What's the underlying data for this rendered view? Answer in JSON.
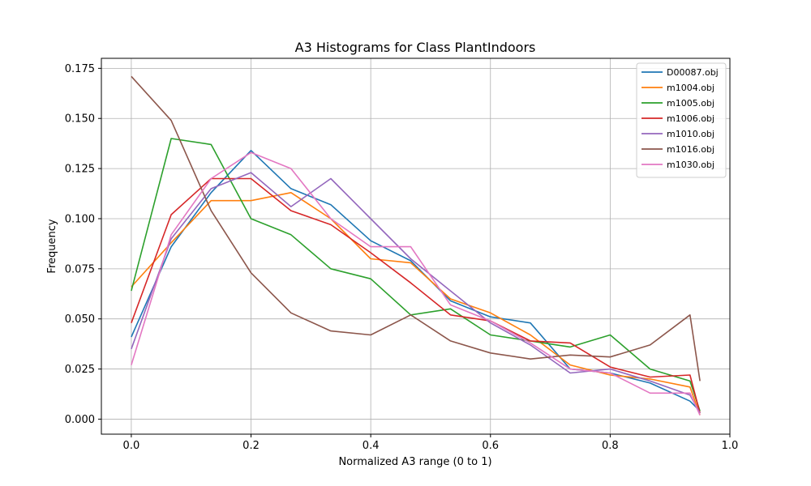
{
  "chart_data": {
    "type": "line",
    "title": "A3 Histograms for Class PlantIndoors",
    "xlabel": "Normalized A3 range (0 to 1)",
    "ylabel": "Frequency",
    "xlim": [
      -0.05,
      1.0
    ],
    "ylim": [
      -0.0075,
      0.18
    ],
    "xticks": [
      0.0,
      0.2,
      0.4,
      0.6,
      0.8,
      1.0
    ],
    "xtick_labels": [
      "0.0",
      "0.2",
      "0.4",
      "0.6",
      "0.8",
      "1.0"
    ],
    "yticks": [
      0.0,
      0.025,
      0.05,
      0.075,
      0.1,
      0.125,
      0.15,
      0.175
    ],
    "ytick_labels": [
      "0.000",
      "0.025",
      "0.050",
      "0.075",
      "0.100",
      "0.125",
      "0.150",
      "0.175"
    ],
    "grid": true,
    "legend_position": "top-right",
    "x": [
      0.0,
      0.0667,
      0.1333,
      0.2,
      0.2667,
      0.3333,
      0.4,
      0.4667,
      0.5333,
      0.6,
      0.6667,
      0.7333,
      0.8,
      0.8667,
      0.9333,
      0.95
    ],
    "series": [
      {
        "name": "D00087.obj",
        "color": "#1f77b4",
        "values": [
          0.041,
          0.086,
          0.113,
          0.134,
          0.115,
          0.107,
          0.089,
          0.079,
          0.059,
          0.051,
          0.048,
          0.025,
          0.023,
          0.018,
          0.009,
          0.004
        ]
      },
      {
        "name": "m1004.obj",
        "color": "#ff7f0e",
        "values": [
          0.066,
          0.088,
          0.109,
          0.109,
          0.113,
          0.1,
          0.08,
          0.078,
          0.06,
          0.053,
          0.042,
          0.027,
          0.022,
          0.02,
          0.016,
          0.002
        ]
      },
      {
        "name": "m1005.obj",
        "color": "#2ca02c",
        "values": [
          0.064,
          0.14,
          0.137,
          0.1,
          0.092,
          0.075,
          0.07,
          0.052,
          0.055,
          0.042,
          0.039,
          0.036,
          0.042,
          0.025,
          0.019,
          0.004
        ]
      },
      {
        "name": "m1006.obj",
        "color": "#d62728",
        "values": [
          0.048,
          0.102,
          0.12,
          0.12,
          0.104,
          0.097,
          0.083,
          0.068,
          0.052,
          0.049,
          0.039,
          0.038,
          0.026,
          0.021,
          0.022,
          0.003
        ]
      },
      {
        "name": "m1010.obj",
        "color": "#9467bd",
        "values": [
          0.035,
          0.09,
          0.115,
          0.123,
          0.106,
          0.12,
          0.1,
          0.08,
          0.064,
          0.048,
          0.037,
          0.023,
          0.025,
          0.019,
          0.012,
          0.003
        ]
      },
      {
        "name": "m1016.obj",
        "color": "#8c564b",
        "values": [
          0.171,
          0.149,
          0.104,
          0.073,
          0.053,
          0.044,
          0.042,
          0.052,
          0.039,
          0.033,
          0.03,
          0.032,
          0.031,
          0.037,
          0.052,
          0.019
        ]
      },
      {
        "name": "m1030.obj",
        "color": "#e377c2",
        "values": [
          0.027,
          0.092,
          0.12,
          0.133,
          0.125,
          0.1,
          0.086,
          0.086,
          0.057,
          0.049,
          0.038,
          0.025,
          0.023,
          0.013,
          0.013,
          0.002
        ]
      }
    ]
  }
}
